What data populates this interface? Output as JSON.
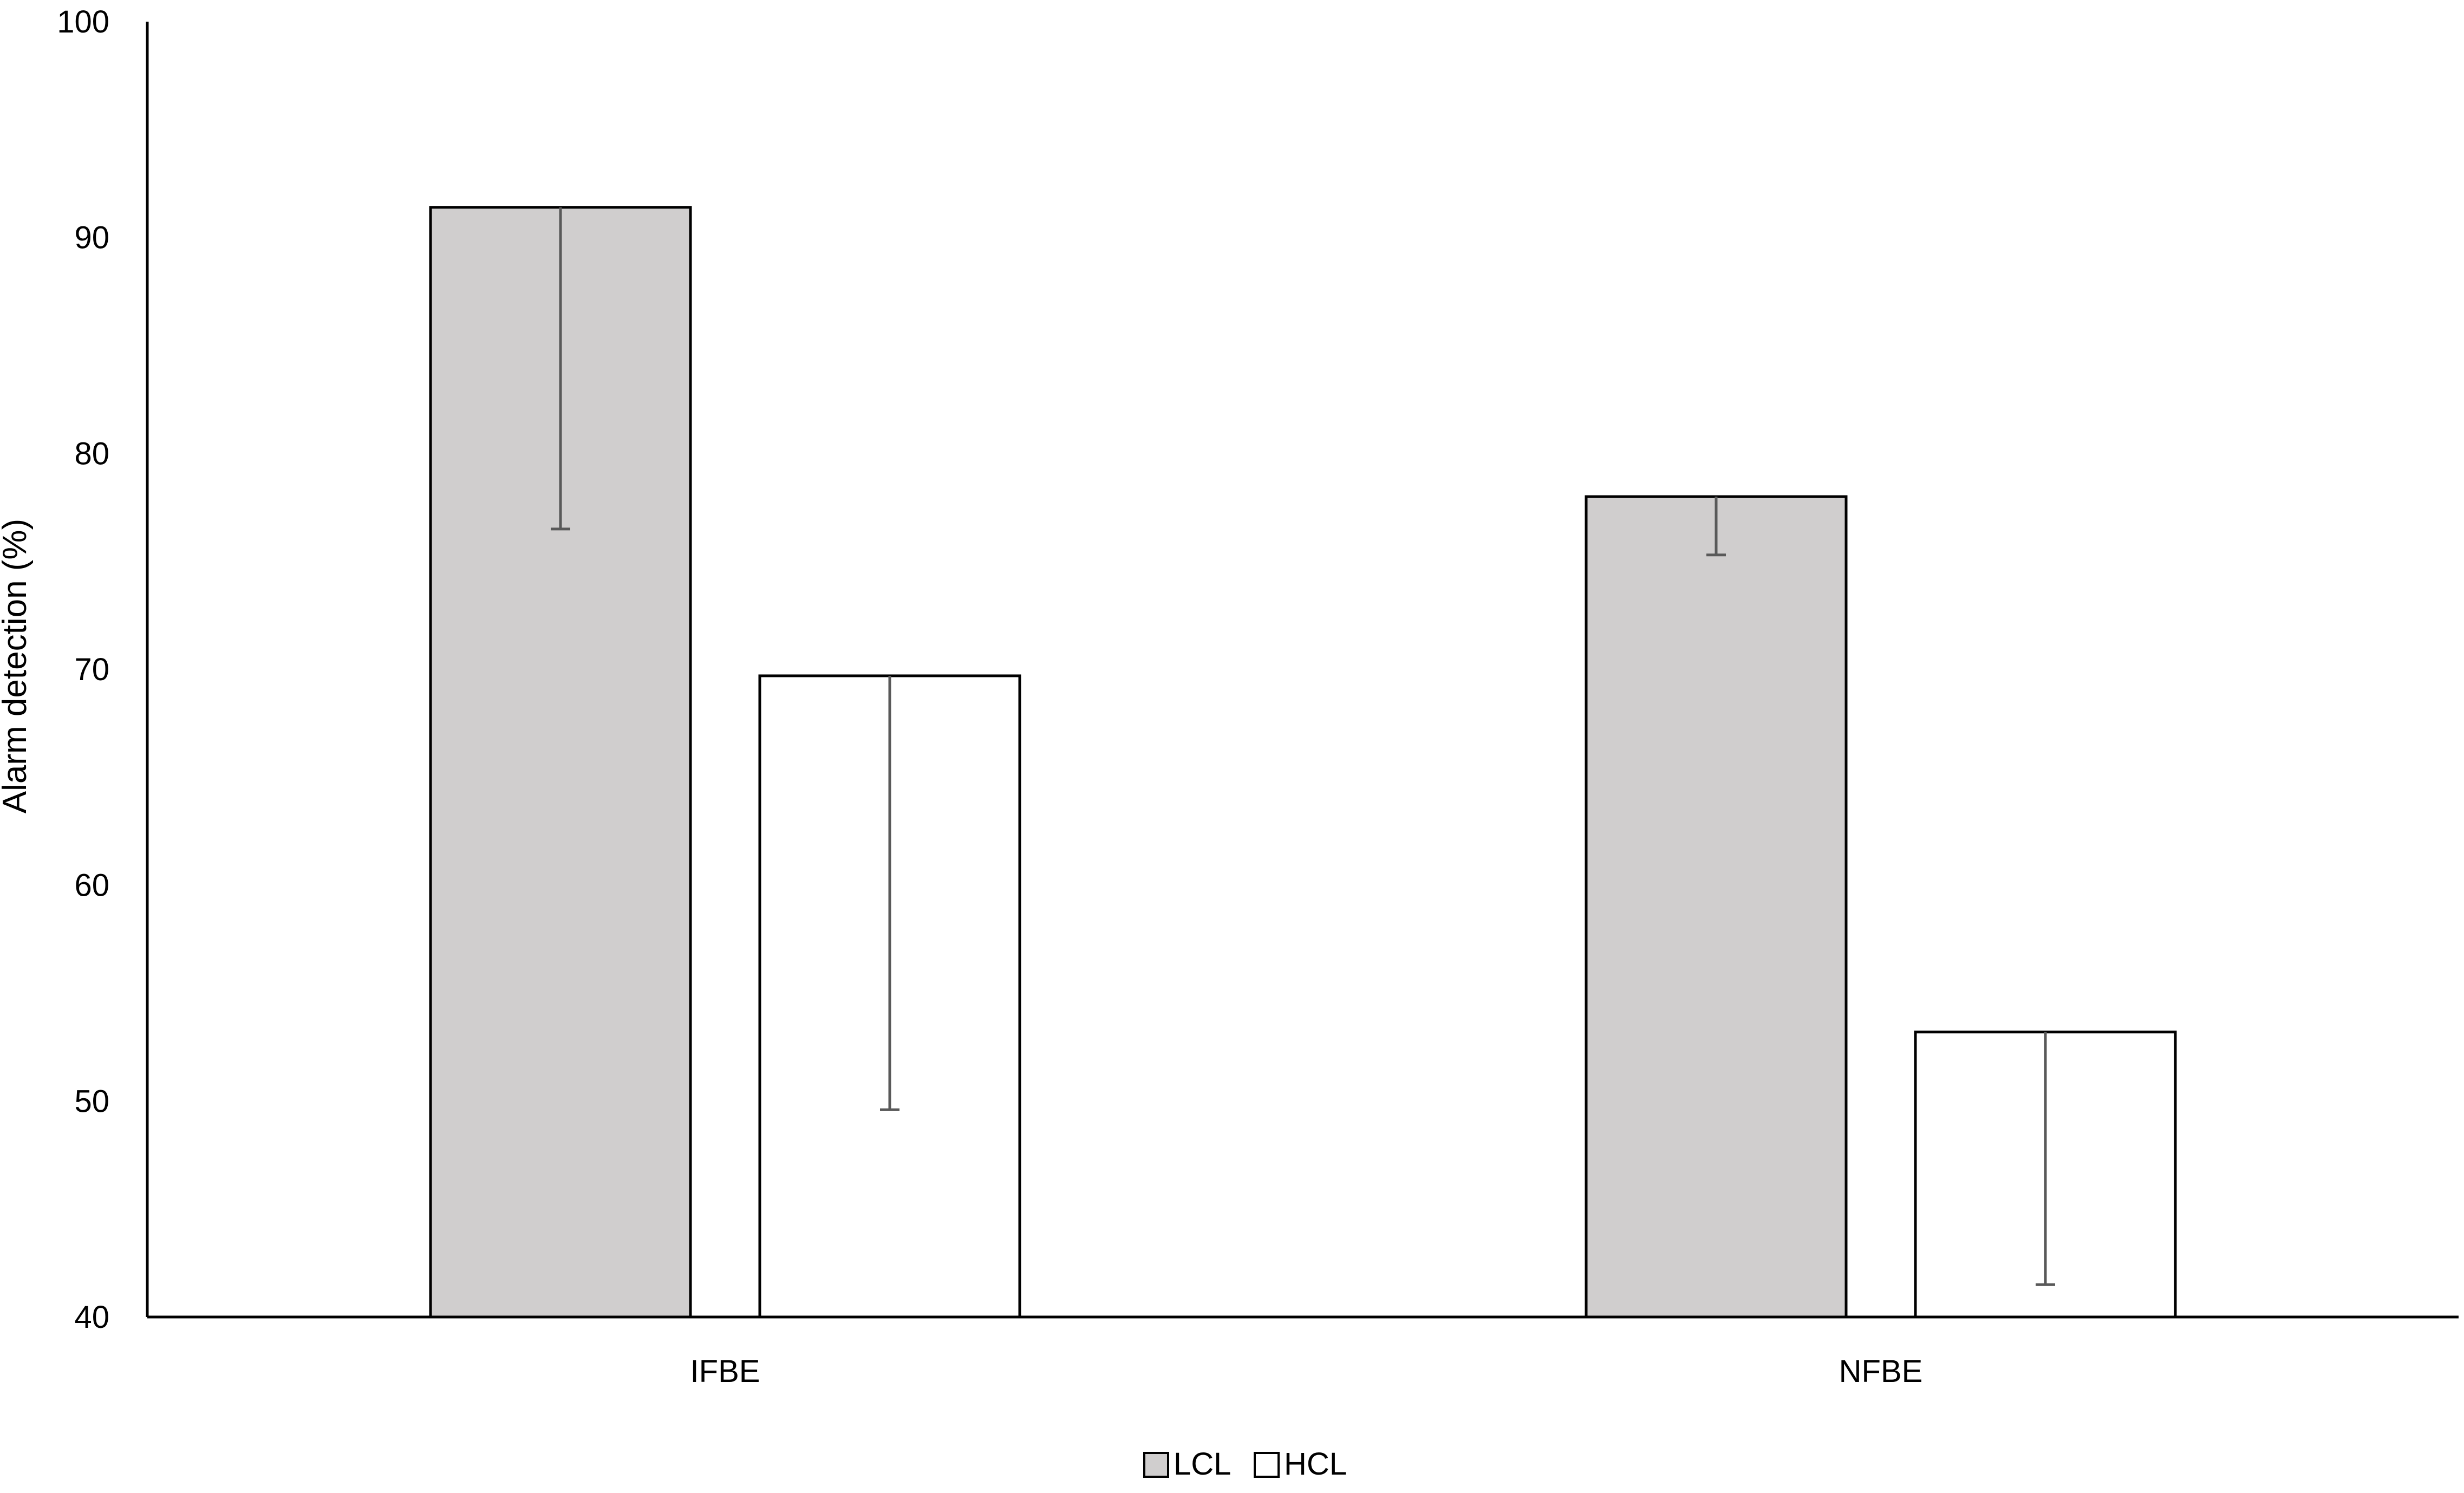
{
  "chart_data": {
    "type": "bar",
    "title": "",
    "xlabel": "",
    "ylabel": "Alarm detection (%)",
    "ylim": [
      40,
      100
    ],
    "yticks": [
      40,
      50,
      60,
      70,
      80,
      90,
      100
    ],
    "grid": false,
    "legend_position": "bottom-center",
    "categories": [
      "IFBE",
      "NFBE"
    ],
    "series": [
      {
        "name": "LCL",
        "color": "#d0cece",
        "values": [
          91.4,
          78.0
        ],
        "error_lower": [
          76.5,
          75.3
        ],
        "error_upper": [
          91.4,
          78.0
        ]
      },
      {
        "name": "HCL",
        "color": "#ffffff",
        "values": [
          69.7,
          53.2
        ],
        "error_lower": [
          49.6,
          41.5
        ],
        "error_upper": [
          69.7,
          53.2
        ]
      }
    ],
    "bar_edge_color": "#000000",
    "error_bar_color": "#595959"
  }
}
